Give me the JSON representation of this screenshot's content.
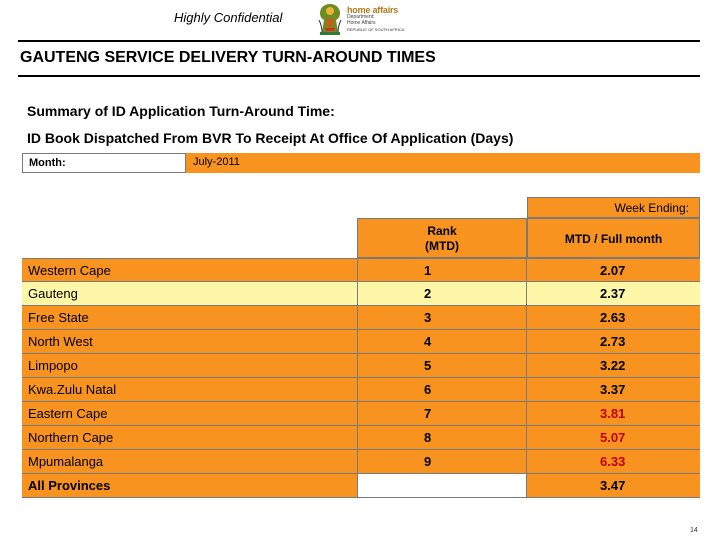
{
  "header": {
    "confidential_label": "Highly Confidential",
    "logo": {
      "brand": "home affairs",
      "department_line1": "Department:",
      "department_line2": "Home Affairs",
      "republic": "REPUBLIC OF SOUTH AFRICA"
    }
  },
  "title": "GAUTENG SERVICE DELIVERY TURN-AROUND TIMES",
  "summary_title": "Summary of ID Application Turn-Around Time:",
  "subtitle": "ID Book Dispatched From BVR To Receipt At Office Of Application (Days)",
  "month": {
    "label": "Month:",
    "value": "July-2011"
  },
  "table": {
    "week_ending_label": "Week Ending:",
    "rank_header_line1": "Rank",
    "rank_header_line2": "(MTD)",
    "mtd_header": "MTD / Full month",
    "rows": [
      {
        "province": "Western Cape",
        "rank": "1",
        "mtd": "2.07"
      },
      {
        "province": "Gauteng",
        "rank": "2",
        "mtd": "2.37"
      },
      {
        "province": "Free State",
        "rank": "3",
        "mtd": "2.63"
      },
      {
        "province": "North West",
        "rank": "4",
        "mtd": "2.73"
      },
      {
        "province": "Limpopo",
        "rank": "5",
        "mtd": "3.22"
      },
      {
        "province": "Kwa.Zulu Natal",
        "rank": "6",
        "mtd": "3.37"
      },
      {
        "province": "Eastern Cape",
        "rank": "7",
        "mtd": "3.81"
      },
      {
        "province": "Northern Cape",
        "rank": "8",
        "mtd": "5.07"
      },
      {
        "province": "Mpumalanga",
        "rank": "9",
        "mtd": "6.33"
      }
    ],
    "total": {
      "province": "All Provinces",
      "rank": "",
      "mtd": "3.47"
    }
  },
  "colors": {
    "accent_orange": "#f7931e",
    "highlight_yellow": "#fff7a8",
    "alert_red": "#c00000"
  },
  "page_number": "14"
}
